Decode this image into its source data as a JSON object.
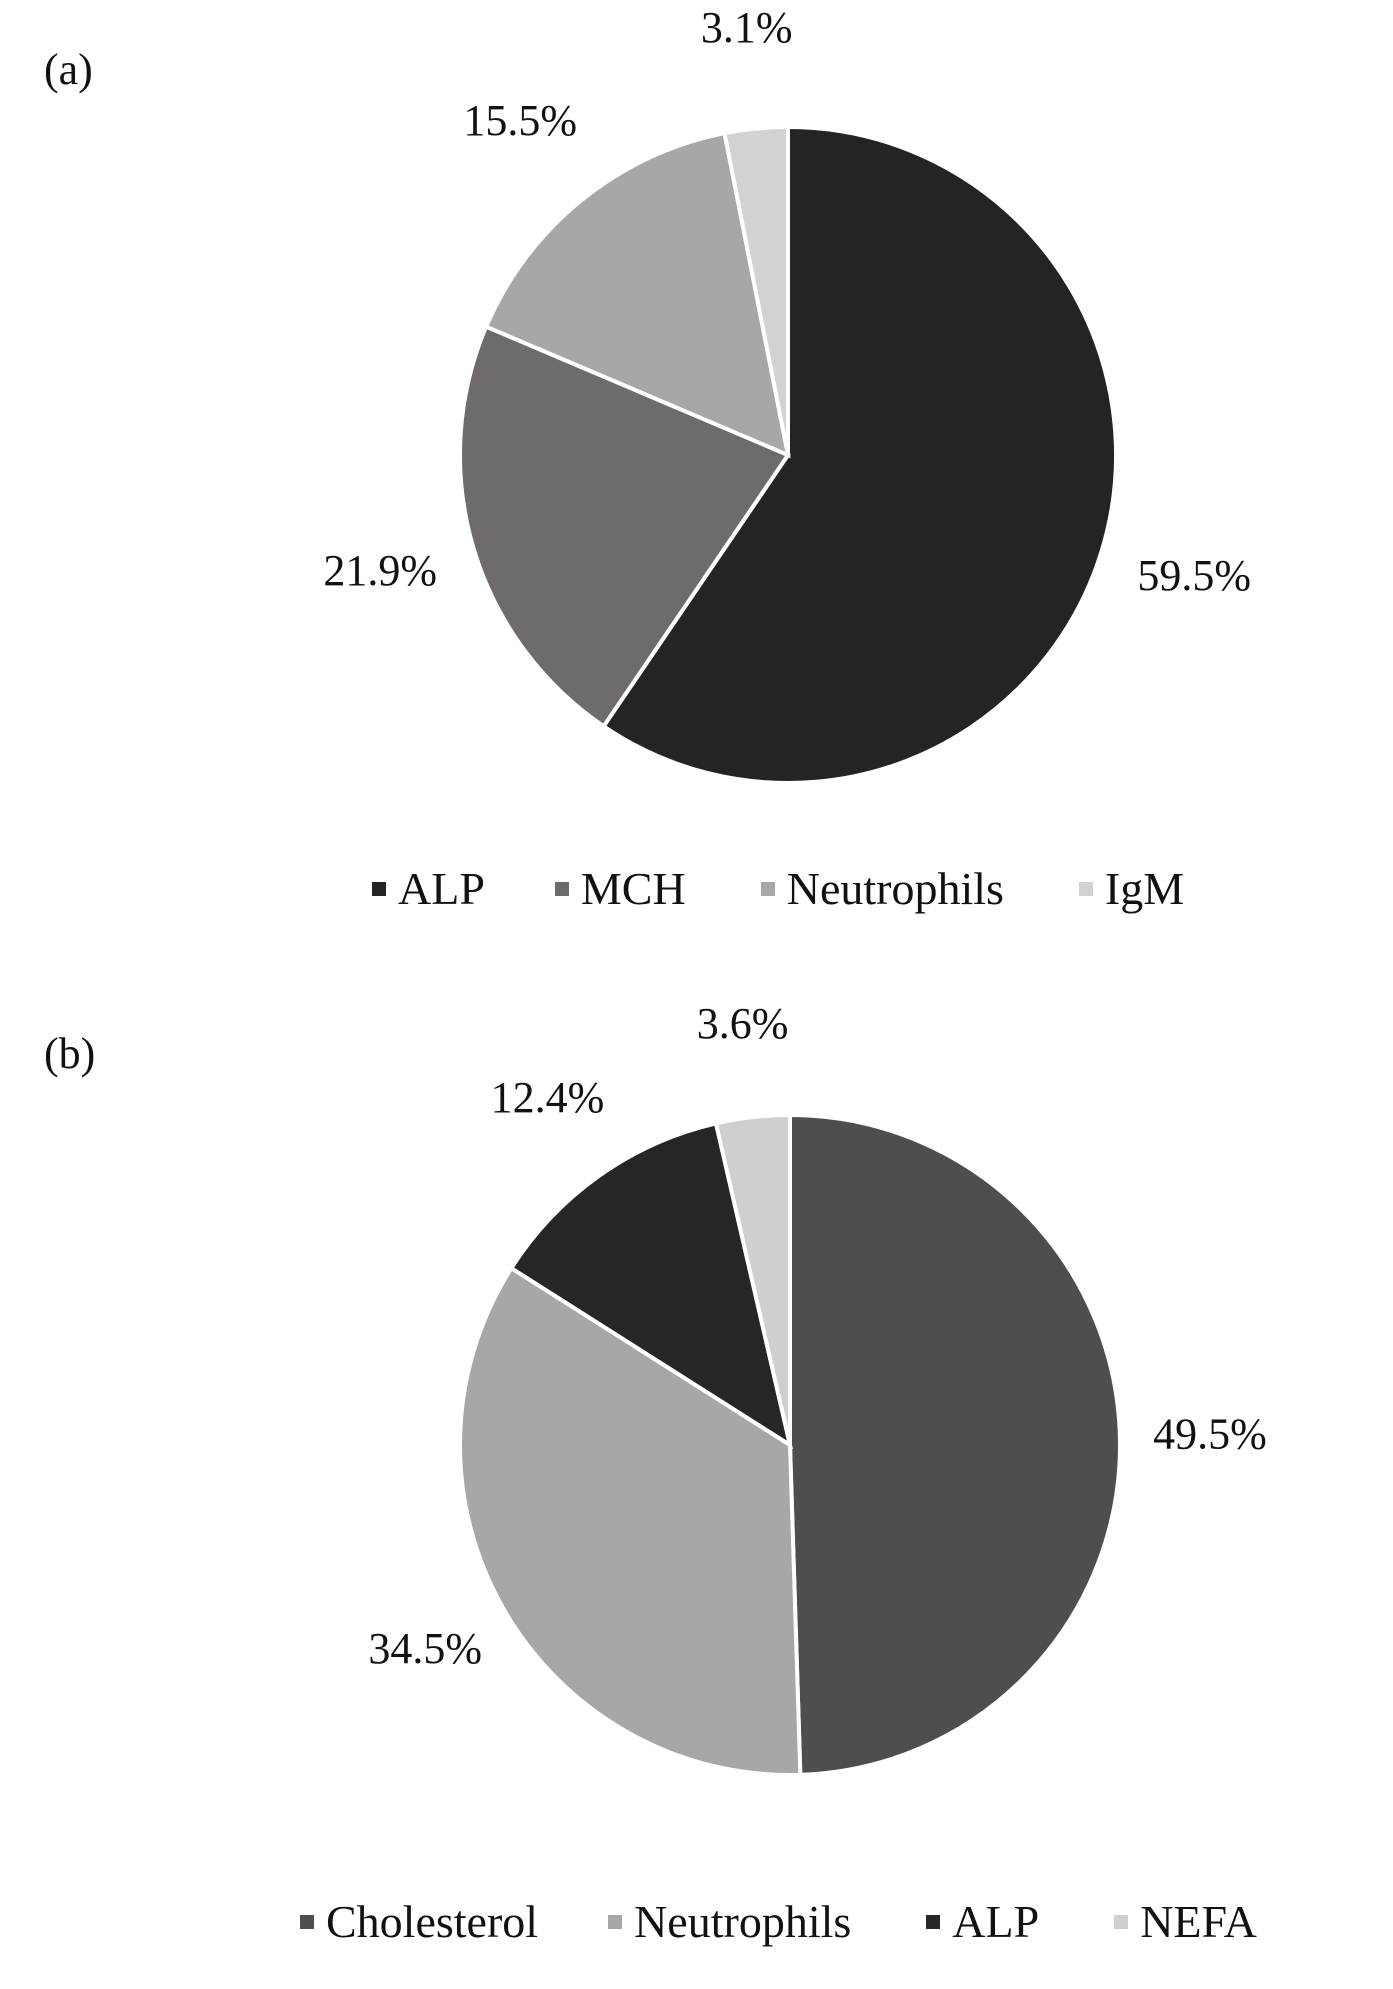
{
  "chart_data": [
    {
      "type": "pie",
      "panel_label": "(a)",
      "legend_position": "bottom",
      "slices": [
        {
          "label": "ALP",
          "value": 59.5,
          "display": "59.5%",
          "color": "#242424"
        },
        {
          "label": "MCH",
          "value": 21.9,
          "display": "21.9%",
          "color": "#6f6b6b"
        },
        {
          "label": "Neutrophils",
          "value": 15.5,
          "display": "15.5%",
          "color": "#a7a7a7"
        },
        {
          "label": "IgM",
          "value": 3.1,
          "display": "3.1%",
          "color": "#d2d2d2"
        }
      ]
    },
    {
      "type": "pie",
      "panel_label": "(b)",
      "legend_position": "bottom",
      "slices": [
        {
          "label": "Cholesterol",
          "value": 49.5,
          "display": "49.5%",
          "color": "#4e4e4e"
        },
        {
          "label": "Neutrophils",
          "value": 34.5,
          "display": "34.5%",
          "color": "#a7a7a7"
        },
        {
          "label": "ALP",
          "value": 12.4,
          "display": "12.4%",
          "color": "#262626"
        },
        {
          "label": "NEFA",
          "value": 3.6,
          "display": "3.6%",
          "color": "#cfcfcf"
        }
      ]
    }
  ]
}
